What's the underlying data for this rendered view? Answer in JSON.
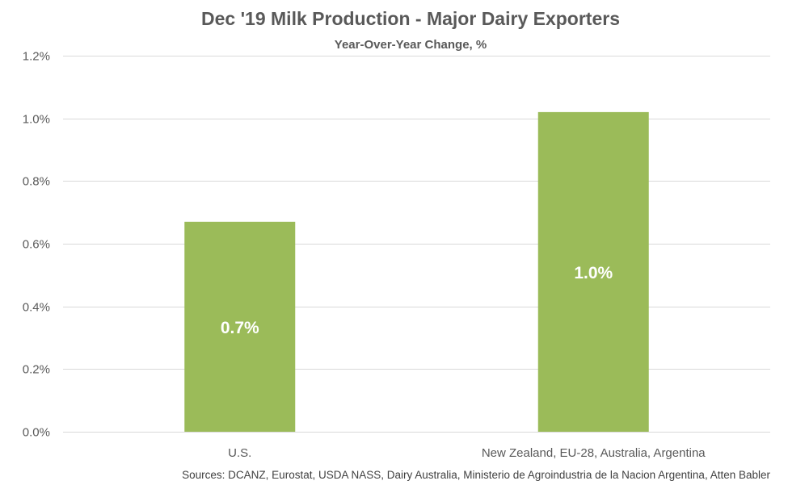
{
  "chart_data": {
    "type": "bar",
    "title": "Dec '19 Milk Production - Major Dairy Exporters",
    "subtitle": "Year-Over-Year Change, %",
    "categories": [
      "U.S.",
      "New Zealand, EU-28, Australia, Argentina"
    ],
    "values": [
      0.67,
      1.02
    ],
    "data_labels": [
      "0.7%",
      "1.0%"
    ],
    "y_ticks": [
      "0.0%",
      "0.2%",
      "0.4%",
      "0.6%",
      "0.8%",
      "1.0%",
      "1.2%"
    ],
    "ylim": [
      0,
      1.2
    ],
    "ystep": 0.2,
    "grid": true,
    "legend": "none",
    "source": "Sources: DCANZ, Eurostat, USDA NASS, Dairy Australia, Ministerio de Agroindustria de la Nacion Argentina, Atten Babler",
    "colors": {
      "bar": "#9BBB59",
      "grid": "#D9D9D9",
      "text": "#595959",
      "label": "#FFFFFF"
    }
  }
}
